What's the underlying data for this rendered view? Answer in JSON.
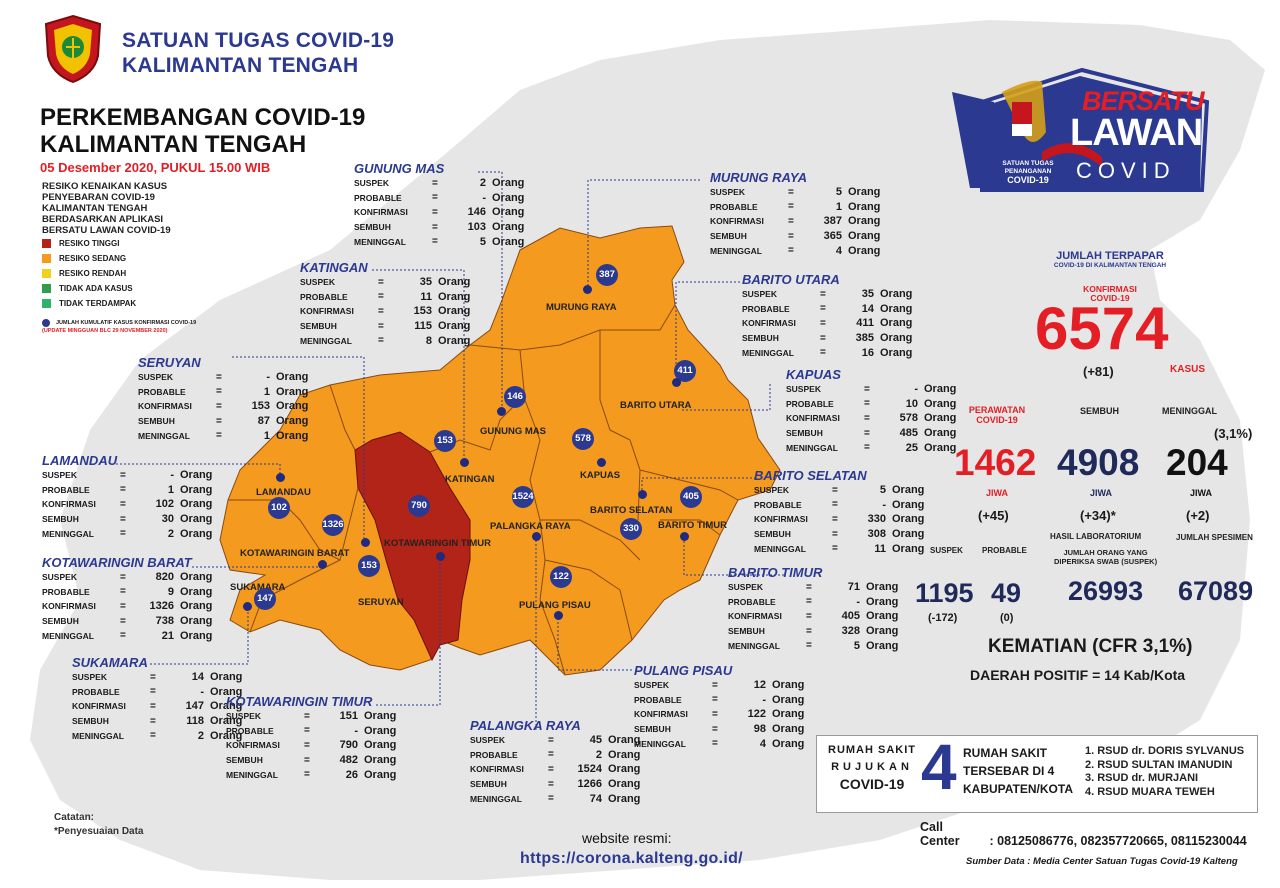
{
  "header": {
    "line1": "SATUAN TUGAS COVID-19",
    "line2": "KALIMANTAN TENGAH",
    "perk1": "PERKEMBANGAN COVID-19",
    "perk2": "KALIMANTAN TENGAH",
    "date": "05 Desember 2020, PUKUL 15.00 WIB",
    "resiko": [
      "RESIKO KENAIKAN KASUS",
      "PENYEBARAN COVID-19",
      "KALIMANTAN TENGAH",
      "BERDASARKAN APLIKASI",
      "BERSATU LAWAN COVID-19"
    ]
  },
  "legend": {
    "items": [
      {
        "label": "RESIKO TINGGI",
        "color": "#b22418"
      },
      {
        "label": "RESIKO SEDANG",
        "color": "#f39a1f"
      },
      {
        "label": "RESIKO RENDAH",
        "color": "#f0d21c"
      },
      {
        "label": "TIDAK ADA KASUS",
        "color": "#2e9e4e"
      },
      {
        "label": "TIDAK TERDAMPAK",
        "color": "#2fb36a"
      }
    ],
    "marker_label": "JUMLAH KUMULATIF KASUS KONFIRMASI COVID-19",
    "update": "(UPDATE MINGGUAN BLC 29 NOVEMBER 2020)"
  },
  "row_labels": {
    "suspek": "SUSPEK",
    "probable": "PROBABLE",
    "konfirmasi": "KONFIRMASI",
    "sembuh": "SEMBUH",
    "meninggal": "MENINGGAL",
    "eq": "=",
    "unit": "Orang"
  },
  "regions": [
    {
      "key": "gunung_mas",
      "name": "GUNUNG MAS",
      "suspek": "2",
      "probable": "-",
      "konfirmasi": "146",
      "sembuh": "103",
      "meninggal": "5"
    },
    {
      "key": "murung_raya",
      "name": "MURUNG RAYA",
      "suspek": "5",
      "probable": "1",
      "konfirmasi": "387",
      "sembuh": "365",
      "meninggal": "4"
    },
    {
      "key": "katingan",
      "name": "KATINGAN",
      "suspek": "35",
      "probable": "11",
      "konfirmasi": "153",
      "sembuh": "115",
      "meninggal": "8"
    },
    {
      "key": "barito_utara",
      "name": "BARITO UTARA",
      "suspek": "35",
      "probable": "14",
      "konfirmasi": "411",
      "sembuh": "385",
      "meninggal": "16"
    },
    {
      "key": "seruyan",
      "name": "SERUYAN",
      "suspek": "-",
      "probable": "1",
      "konfirmasi": "153",
      "sembuh": "87",
      "meninggal": "1"
    },
    {
      "key": "kapuas",
      "name": "KAPUAS",
      "suspek": "-",
      "probable": "10",
      "konfirmasi": "578",
      "sembuh": "485",
      "meninggal": "25"
    },
    {
      "key": "lamandau",
      "name": "LAMANDAU",
      "suspek": "-",
      "probable": "1",
      "konfirmasi": "102",
      "sembuh": "30",
      "meninggal": "2"
    },
    {
      "key": "barito_selatan",
      "name": "BARITO SELATAN",
      "suspek": "5",
      "probable": "-",
      "konfirmasi": "330",
      "sembuh": "308",
      "meninggal": "11"
    },
    {
      "key": "kobar",
      "name": "KOTAWARINGIN BARAT",
      "suspek": "820",
      "probable": "9",
      "konfirmasi": "1326",
      "sembuh": "738",
      "meninggal": "21"
    },
    {
      "key": "barito_timur",
      "name": "BARITO TIMUR",
      "suspek": "71",
      "probable": "-",
      "konfirmasi": "405",
      "sembuh": "328",
      "meninggal": "5"
    },
    {
      "key": "sukamara",
      "name": "SUKAMARA",
      "suspek": "14",
      "probable": "-",
      "konfirmasi": "147",
      "sembuh": "118",
      "meninggal": "2"
    },
    {
      "key": "pulang_pisau",
      "name": "PULANG PISAU",
      "suspek": "12",
      "probable": "-",
      "konfirmasi": "122",
      "sembuh": "98",
      "meninggal": "4"
    },
    {
      "key": "kotim",
      "name": "KOTAWARINGIN TIMUR",
      "suspek": "151",
      "probable": "-",
      "konfirmasi": "790",
      "sembuh": "482",
      "meninggal": "26"
    },
    {
      "key": "palangka_raya",
      "name": "PALANGKA RAYA",
      "suspek": "45",
      "probable": "2",
      "konfirmasi": "1524",
      "sembuh": "1266",
      "meninggal": "74"
    }
  ],
  "map_labels": {
    "murung_raya": "MURUNG RAYA",
    "gunung_mas": "GUNUNG MAS",
    "katingan": "KATINGAN",
    "barito_utara": "BARITO UTARA",
    "kapuas": "KAPUAS",
    "barito_selatan": "BARITO SELATAN",
    "barito_timur": "BARITO TIMUR",
    "lamandau": "LAMANDAU",
    "kotawaringin_barat": "KOTAWARINGIN BARAT",
    "kotawaringin_timur": "KOTAWARINGIN TIMUR",
    "palangka_raya": "PALANGKA RAYA",
    "sukamara": "SUKAMARA",
    "seruyan": "SERUYAN",
    "pulang_pisau": "PULANG PISAU"
  },
  "markers": {
    "murung_raya": "387",
    "gunung_mas": "146",
    "katingan": "153",
    "barito_utara": "411",
    "kapuas": "578",
    "barito_selatan": "330",
    "barito_timur": "405",
    "lamandau": "102",
    "kotawaringin_barat": "1326",
    "kotawaringin_timur": "790",
    "palangka_raya": "1524",
    "sukamara": "147",
    "seruyan": "153",
    "pulang_pisau": "122"
  },
  "logo": {
    "bersatu": "BERSATU",
    "lawan": "LAWAN",
    "covid": "COVID",
    "satgas1": "SATUAN TUGAS",
    "satgas2": "PENANGANAN",
    "satgas3": "COVID-19"
  },
  "stats": {
    "jumlah_title": "JUMLAH TERPAPAR",
    "jumlah_sub": "COVID-19 DI KALIMANTAN TENGAH",
    "konfirmasi_label1": "KONFIRMASI",
    "konfirmasi_label2": "COVID-19",
    "total": "6574",
    "total_delta": "(+81)",
    "kasus": "KASUS",
    "perawatan1": "PERAWATAN",
    "perawatan2": "COVID-19",
    "sembuh_label": "SEMBUH",
    "meninggal_label": "MENINGGAL",
    "pct": "(3,1%)",
    "perawatan": "1462",
    "sembuh": "4908",
    "meninggal": "204",
    "jiwa": "JIWA",
    "perawatan_delta": "(+45)",
    "sembuh_delta": "(+34)*",
    "meninggal_delta": "(+2)",
    "hasil_lab": "HASIL LABORATORIUM",
    "suspek_label": "SUSPEK",
    "probable_label": "PROBABLE",
    "swab_label1": "JUMLAH ORANG YANG",
    "swab_label2": "DIPERIKSA SWAB (SUSPEK)",
    "spesimen_label": "JUMLAH SPESIMEN",
    "suspek": "1195",
    "probable": "49",
    "suspek_delta": "(-172)",
    "probable_delta": "(0)",
    "swab": "26993",
    "spesimen": "67089",
    "kematian": "KEMATIAN (CFR 3,1%)",
    "daerah": "DAERAH POSITIF = 14 Kab/Kota"
  },
  "rumah_sakit": {
    "left1": "RUMAH SAKIT",
    "left2": "RUJUKAN",
    "left3": "COVID-19",
    "number": "4",
    "mid1": "RUMAH SAKIT",
    "mid2": "TERSEBAR DI 4",
    "mid3": "KABUPATEN/KOTA",
    "list": [
      "1. RSUD dr. DORIS SYLVANUS",
      "2. RSUD SULTAN IMANUDIN",
      "3. RSUD dr. MURJANI",
      "4. RSUD MUARA TEWEH"
    ]
  },
  "footer": {
    "call_center": "Call Center",
    "call_numbers": ": 08125086776, 082357720665, 08115230044",
    "sumber": "Sumber Data : Media Center Satuan Tugas Covid-19 Kalteng",
    "catatan": "Catatan:",
    "penyesuaian": "*Penyesuaian Data",
    "website_label": "website resmi:",
    "website_url": "https://corona.kalteng.go.id/"
  }
}
